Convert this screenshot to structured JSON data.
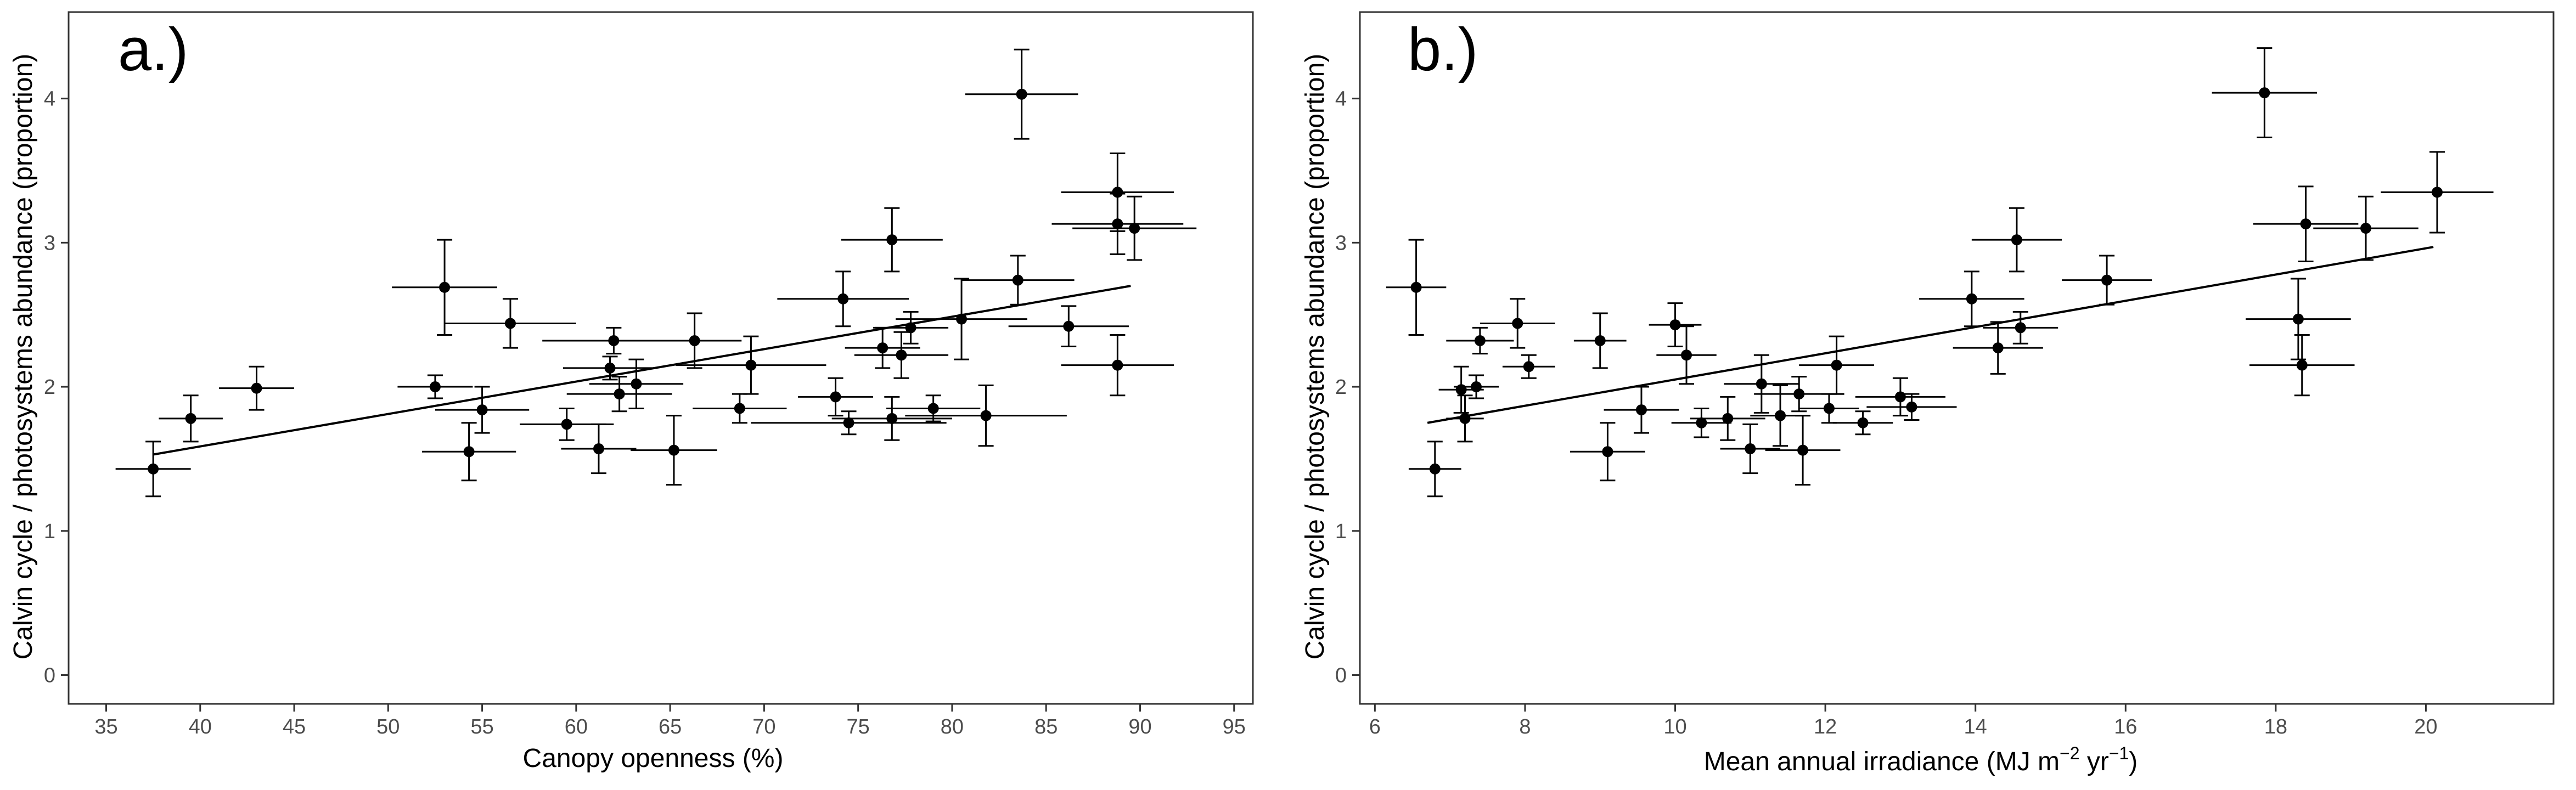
{
  "chart_data": [
    {
      "type": "scatter",
      "panel_label": "a.)",
      "xlabel": "Canopy openness (%)",
      "ylabel": "Calvin cycle / photosystems abundance (proportion)",
      "xlim": [
        33,
        96
      ],
      "ylim": [
        -0.2,
        4.6
      ],
      "xticks": [
        35,
        40,
        45,
        50,
        55,
        60,
        65,
        70,
        75,
        80,
        85,
        90,
        95
      ],
      "yticks": [
        0,
        1,
        2,
        3,
        4
      ],
      "grid": false,
      "fit_line": [
        [
          37.5,
          1.53
        ],
        [
          89.5,
          2.7
        ]
      ],
      "points": [
        {
          "x": 37.5,
          "y": 1.43,
          "xerr": 2.0,
          "yerr": 0.19
        },
        {
          "x": 39.5,
          "y": 1.78,
          "xerr": 1.7,
          "yerr": 0.16
        },
        {
          "x": 43.0,
          "y": 1.99,
          "xerr": 2.0,
          "yerr": 0.15
        },
        {
          "x": 52.5,
          "y": 2.0,
          "xerr": 2.0,
          "yerr": 0.08
        },
        {
          "x": 53.0,
          "y": 2.69,
          "xerr": 2.8,
          "yerr": 0.33
        },
        {
          "x": 54.3,
          "y": 1.55,
          "xerr": 2.5,
          "yerr": 0.2
        },
        {
          "x": 55.0,
          "y": 1.84,
          "xerr": 2.5,
          "yerr": 0.16
        },
        {
          "x": 56.5,
          "y": 2.44,
          "xerr": 3.5,
          "yerr": 0.17
        },
        {
          "x": 59.5,
          "y": 1.74,
          "xerr": 2.5,
          "yerr": 0.11
        },
        {
          "x": 61.2,
          "y": 1.57,
          "xerr": 2.0,
          "yerr": 0.17
        },
        {
          "x": 61.8,
          "y": 2.13,
          "xerr": 2.5,
          "yerr": 0.08
        },
        {
          "x": 62.0,
          "y": 2.32,
          "xerr": 3.8,
          "yerr": 0.09
        },
        {
          "x": 62.3,
          "y": 1.95,
          "xerr": 2.8,
          "yerr": 0.12
        },
        {
          "x": 63.2,
          "y": 2.02,
          "xerr": 2.5,
          "yerr": 0.17
        },
        {
          "x": 65.2,
          "y": 1.56,
          "xerr": 2.3,
          "yerr": 0.24
        },
        {
          "x": 66.3,
          "y": 2.32,
          "xerr": 2.5,
          "yerr": 0.19
        },
        {
          "x": 68.7,
          "y": 1.85,
          "xerr": 2.5,
          "yerr": 0.1
        },
        {
          "x": 69.3,
          "y": 2.15,
          "xerr": 4.0,
          "yerr": 0.2
        },
        {
          "x": 73.8,
          "y": 1.93,
          "xerr": 2.0,
          "yerr": 0.13
        },
        {
          "x": 74.2,
          "y": 2.61,
          "xerr": 3.5,
          "yerr": 0.19
        },
        {
          "x": 74.5,
          "y": 1.75,
          "xerr": 5.2,
          "yerr": 0.08
        },
        {
          "x": 76.3,
          "y": 2.27,
          "xerr": 2.0,
          "yerr": 0.14
        },
        {
          "x": 76.8,
          "y": 3.02,
          "xerr": 2.7,
          "yerr": 0.22
        },
        {
          "x": 76.8,
          "y": 1.78,
          "xerr": 3.2,
          "yerr": 0.15
        },
        {
          "x": 77.3,
          "y": 2.22,
          "xerr": 2.5,
          "yerr": 0.16
        },
        {
          "x": 77.8,
          "y": 2.41,
          "xerr": 2.0,
          "yerr": 0.11
        },
        {
          "x": 79.0,
          "y": 1.85,
          "xerr": 2.5,
          "yerr": 0.09
        },
        {
          "x": 80.5,
          "y": 2.47,
          "xerr": 3.5,
          "yerr": 0.28
        },
        {
          "x": 81.8,
          "y": 1.8,
          "xerr": 4.3,
          "yerr": 0.21
        },
        {
          "x": 83.5,
          "y": 2.74,
          "xerr": 3.0,
          "yerr": 0.17
        },
        {
          "x": 83.7,
          "y": 4.03,
          "xerr": 3.0,
          "yerr": 0.31
        },
        {
          "x": 86.2,
          "y": 2.42,
          "xerr": 3.2,
          "yerr": 0.14
        },
        {
          "x": 88.8,
          "y": 3.35,
          "xerr": 3.0,
          "yerr": 0.27
        },
        {
          "x": 88.8,
          "y": 3.13,
          "xerr": 3.5,
          "yerr": 0.21
        },
        {
          "x": 88.8,
          "y": 2.15,
          "xerr": 3.0,
          "yerr": 0.21
        },
        {
          "x": 89.7,
          "y": 3.1,
          "xerr": 3.3,
          "yerr": 0.22
        }
      ]
    },
    {
      "type": "scatter",
      "panel_label": "b.)",
      "xlabel_main": "Mean annual irradiance (MJ m",
      "xlabel_sup1": "−2",
      "xlabel_mid": " yr",
      "xlabel_sup2": "−1",
      "xlabel_end": ")",
      "ylabel": "Calvin cycle / photosystems abundance (proportion)",
      "xlim": [
        5.8,
        21.7
      ],
      "ylim": [
        -0.2,
        4.6
      ],
      "xticks": [
        6,
        8,
        10,
        12,
        14,
        16,
        18,
        20
      ],
      "yticks": [
        0,
        1,
        2,
        3,
        4
      ],
      "grid": false,
      "fit_line": [
        [
          6.7,
          1.75
        ],
        [
          20.1,
          2.97
        ]
      ],
      "points": [
        {
          "x": 6.55,
          "y": 2.69,
          "xerr": 0.4,
          "yerr": 0.33
        },
        {
          "x": 6.8,
          "y": 1.43,
          "xerr": 0.35,
          "yerr": 0.19
        },
        {
          "x": 7.15,
          "y": 1.98,
          "xerr": 0.3,
          "yerr": 0.16
        },
        {
          "x": 7.2,
          "y": 1.78,
          "xerr": 0.25,
          "yerr": 0.16
        },
        {
          "x": 7.35,
          "y": 2.0,
          "xerr": 0.3,
          "yerr": 0.08
        },
        {
          "x": 7.4,
          "y": 2.32,
          "xerr": 0.45,
          "yerr": 0.09
        },
        {
          "x": 7.9,
          "y": 2.44,
          "xerr": 0.5,
          "yerr": 0.17
        },
        {
          "x": 8.05,
          "y": 2.14,
          "xerr": 0.35,
          "yerr": 0.08
        },
        {
          "x": 9.0,
          "y": 2.32,
          "xerr": 0.35,
          "yerr": 0.19
        },
        {
          "x": 9.1,
          "y": 1.55,
          "xerr": 0.5,
          "yerr": 0.2
        },
        {
          "x": 9.55,
          "y": 1.84,
          "xerr": 0.5,
          "yerr": 0.16
        },
        {
          "x": 10.0,
          "y": 2.43,
          "xerr": 0.35,
          "yerr": 0.15
        },
        {
          "x": 10.15,
          "y": 2.22,
          "xerr": 0.4,
          "yerr": 0.2
        },
        {
          "x": 10.35,
          "y": 1.75,
          "xerr": 0.4,
          "yerr": 0.1
        },
        {
          "x": 10.7,
          "y": 1.78,
          "xerr": 0.5,
          "yerr": 0.15
        },
        {
          "x": 11.0,
          "y": 1.57,
          "xerr": 0.4,
          "yerr": 0.17
        },
        {
          "x": 11.15,
          "y": 2.02,
          "xerr": 0.5,
          "yerr": 0.2
        },
        {
          "x": 11.4,
          "y": 1.8,
          "xerr": 0.4,
          "yerr": 0.21
        },
        {
          "x": 11.65,
          "y": 1.95,
          "xerr": 0.6,
          "yerr": 0.12
        },
        {
          "x": 11.7,
          "y": 1.56,
          "xerr": 0.5,
          "yerr": 0.24
        },
        {
          "x": 12.05,
          "y": 1.85,
          "xerr": 0.4,
          "yerr": 0.1
        },
        {
          "x": 12.15,
          "y": 2.15,
          "xerr": 0.5,
          "yerr": 0.2
        },
        {
          "x": 12.5,
          "y": 1.75,
          "xerr": 0.4,
          "yerr": 0.08
        },
        {
          "x": 13.0,
          "y": 1.93,
          "xerr": 0.6,
          "yerr": 0.13
        },
        {
          "x": 13.15,
          "y": 1.86,
          "xerr": 0.6,
          "yerr": 0.09
        },
        {
          "x": 13.95,
          "y": 2.61,
          "xerr": 0.7,
          "yerr": 0.19
        },
        {
          "x": 14.3,
          "y": 2.27,
          "xerr": 0.6,
          "yerr": 0.18
        },
        {
          "x": 14.55,
          "y": 3.02,
          "xerr": 0.6,
          "yerr": 0.22
        },
        {
          "x": 14.6,
          "y": 2.41,
          "xerr": 0.5,
          "yerr": 0.11
        },
        {
          "x": 15.75,
          "y": 2.74,
          "xerr": 0.6,
          "yerr": 0.17
        },
        {
          "x": 17.85,
          "y": 4.04,
          "xerr": 0.7,
          "yerr": 0.31
        },
        {
          "x": 18.3,
          "y": 2.47,
          "xerr": 0.7,
          "yerr": 0.28
        },
        {
          "x": 18.35,
          "y": 2.15,
          "xerr": 0.7,
          "yerr": 0.21
        },
        {
          "x": 18.4,
          "y": 3.13,
          "xerr": 0.7,
          "yerr": 0.26
        },
        {
          "x": 19.2,
          "y": 3.1,
          "xerr": 0.7,
          "yerr": 0.22
        },
        {
          "x": 20.15,
          "y": 3.35,
          "xerr": 0.75,
          "yerr": 0.28
        }
      ]
    }
  ]
}
